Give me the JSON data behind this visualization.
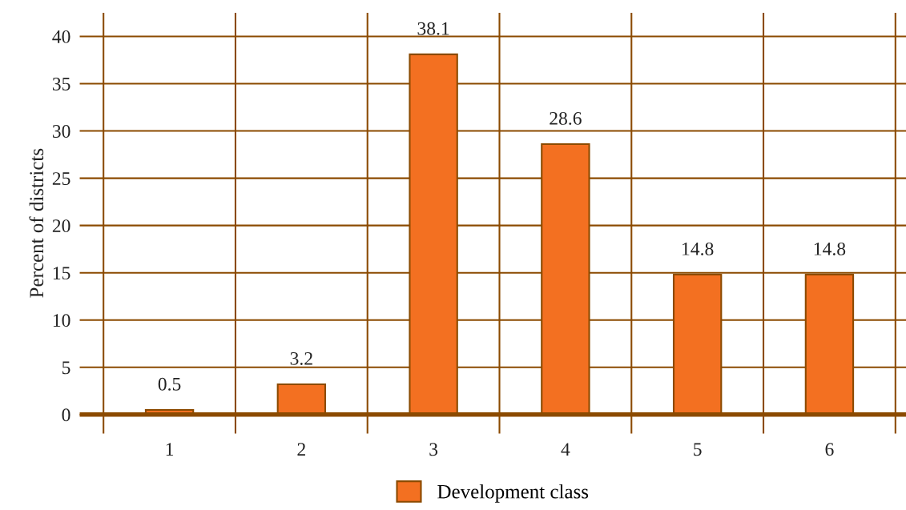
{
  "chart_data": {
    "type": "bar",
    "ylabel": "Percent of districts",
    "categories": [
      "1",
      "2",
      "3",
      "4",
      "5",
      "6"
    ],
    "series": [
      {
        "name": "Development class",
        "color": "#f37021",
        "values": [
          0.5,
          3.2,
          38.1,
          28.6,
          14.8,
          14.8
        ]
      }
    ],
    "ylim": [
      -2,
      42.5
    ],
    "yticks": [
      0,
      5,
      10,
      15,
      20,
      25,
      30,
      35,
      40
    ],
    "grid": true,
    "legend": "bottom",
    "data_labels": true
  }
}
